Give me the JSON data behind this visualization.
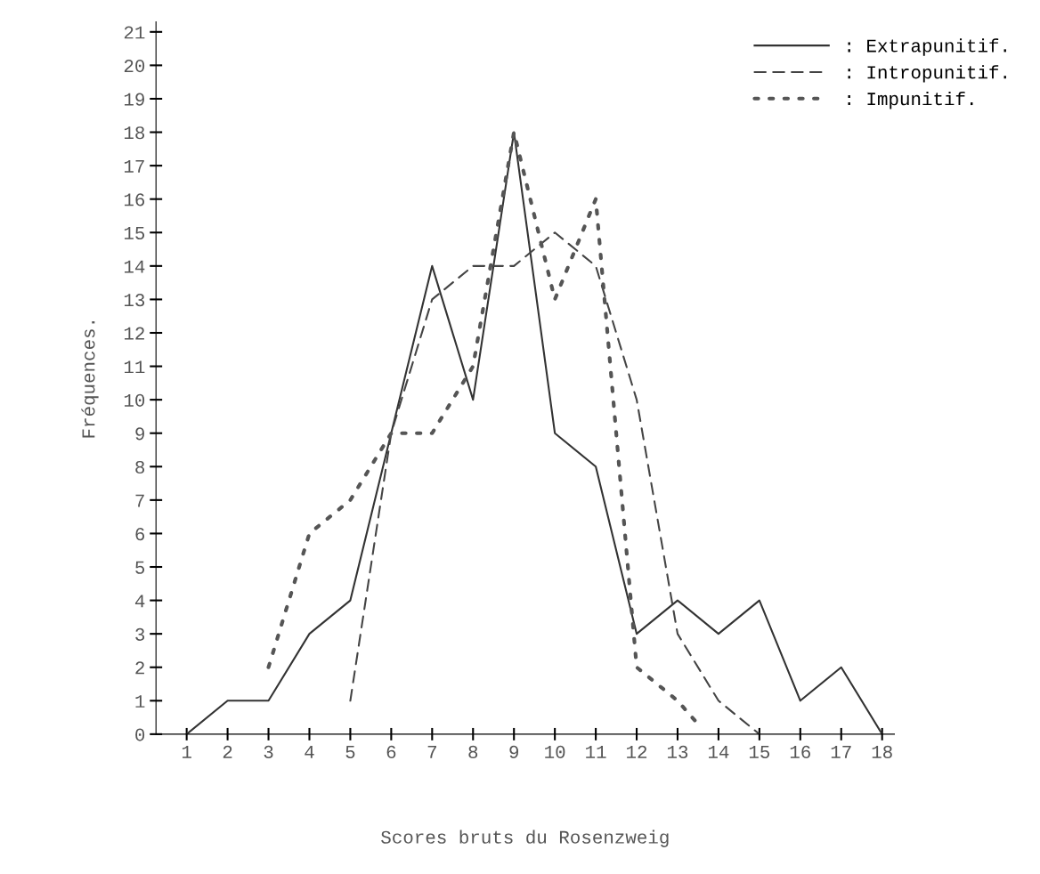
{
  "chart_data": {
    "type": "line",
    "xlabel": "Scores bruts du Rosenzweig",
    "ylabel": "Fréquences.",
    "xlim": [
      0.25,
      18.3
    ],
    "xticks": [
      1,
      2,
      3,
      4,
      5,
      6,
      7,
      8,
      9,
      10,
      11,
      12,
      13,
      14,
      15,
      16,
      17,
      18
    ],
    "ylim": [
      0,
      21.3
    ],
    "yticks": [
      0,
      1,
      2,
      3,
      4,
      5,
      6,
      7,
      8,
      9,
      10,
      11,
      12,
      13,
      14,
      15,
      16,
      17,
      18,
      19,
      20,
      21
    ],
    "grid": false,
    "legend": "top right",
    "series": [
      {
        "name": ": Extrapunitif.",
        "color": "#333333",
        "line_style": "solid",
        "x": [
          1,
          2,
          3,
          4,
          5,
          6,
          7,
          8,
          9,
          10,
          11,
          12,
          13,
          14,
          15,
          16,
          17,
          18
        ],
        "values": [
          0,
          1,
          1,
          3,
          4,
          9,
          14,
          10,
          18,
          9,
          8,
          3,
          4,
          3,
          4,
          1,
          2,
          0
        ]
      },
      {
        "name": ": Intropunitif.",
        "color": "#444444",
        "line_style": "dashed",
        "x": [
          5,
          6,
          7,
          8,
          9,
          10,
          11,
          12,
          13,
          14,
          15
        ],
        "values": [
          1,
          9,
          13,
          14,
          14,
          15,
          14,
          10,
          3,
          1,
          0
        ]
      },
      {
        "name": ": Impunitif.",
        "color": "#555555",
        "line_style": "dotted",
        "x": [
          3,
          4,
          5,
          6,
          7,
          8,
          9,
          10,
          11,
          12,
          13,
          13.5
        ],
        "values": [
          2,
          6,
          7,
          9,
          9,
          11,
          18,
          13,
          16,
          2,
          1,
          0.3
        ]
      }
    ]
  }
}
